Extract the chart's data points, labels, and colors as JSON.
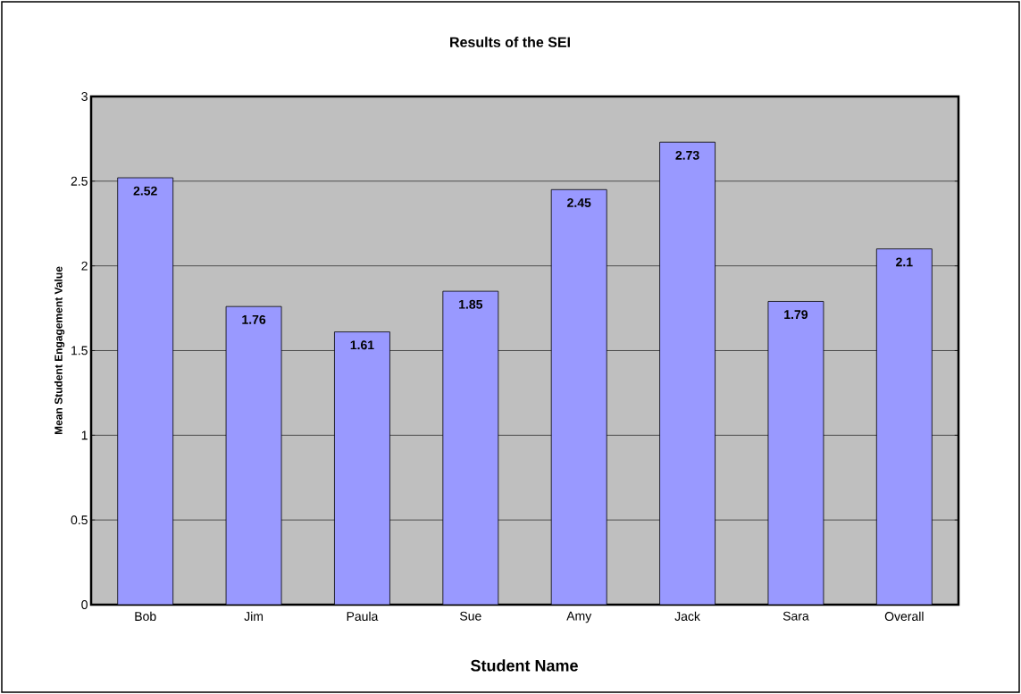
{
  "chart_data": {
    "type": "bar",
    "title": "Results of the SEI",
    "xlabel": "Student Name",
    "ylabel": "Mean Student Engagement Value",
    "categories": [
      "Bob",
      "Jim",
      "Paula",
      "Sue",
      "Amy",
      "Jack",
      "Sara",
      "Overall"
    ],
    "values": [
      2.52,
      1.76,
      1.61,
      1.85,
      2.45,
      2.73,
      1.79,
      2.1
    ],
    "color": "#9999ff",
    "ylim": [
      0,
      3
    ],
    "yticks": [
      0,
      0.5,
      1,
      1.5,
      2,
      2.5,
      3
    ],
    "grid": "y",
    "data_labels": true
  }
}
